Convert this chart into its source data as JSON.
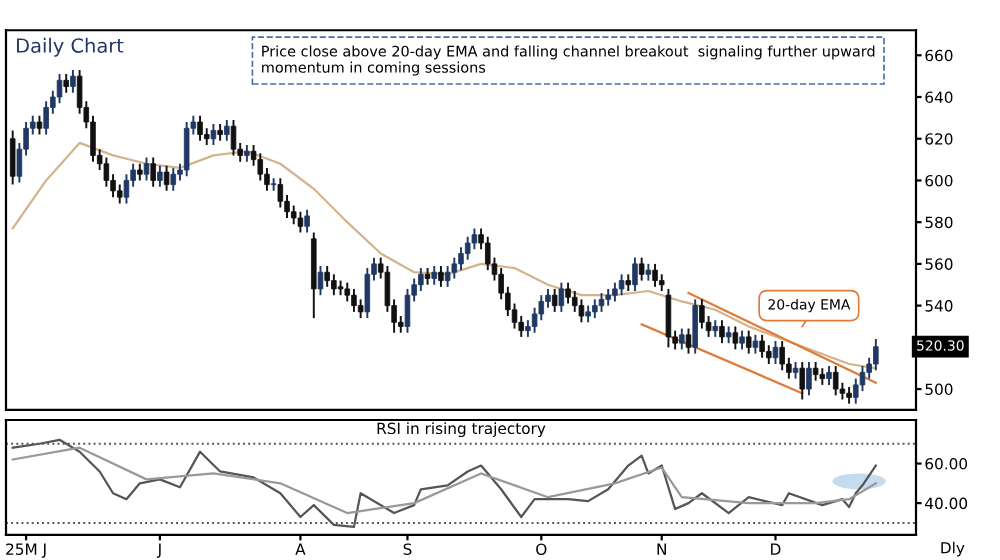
{
  "chart_data": [
    {
      "type": "candlestick",
      "title": "Daily Chart",
      "ylim": [
        490,
        672
      ],
      "yticks": [
        500,
        540,
        560,
        580,
        600,
        620,
        640,
        660
      ],
      "categories": [
        null,
        null,
        null,
        null,
        null,
        null,
        null,
        null,
        null,
        null,
        null,
        null,
        null,
        null,
        null,
        null,
        null,
        null,
        null,
        null,
        null,
        null,
        null,
        null,
        null,
        null,
        null,
        null,
        null,
        null,
        null,
        null,
        null,
        null,
        null,
        null,
        null,
        null,
        null,
        null,
        null,
        null,
        null,
        null,
        null,
        null,
        null,
        null,
        null,
        null,
        null,
        null,
        null,
        null,
        null,
        null,
        null,
        null,
        null,
        null,
        null,
        null,
        null,
        null,
        null,
        null,
        null,
        null,
        null,
        null,
        null,
        null,
        null,
        null,
        null,
        null,
        null,
        null,
        null,
        null,
        null,
        null,
        null,
        null,
        null,
        null,
        null,
        null,
        null,
        null,
        null,
        null,
        null,
        null,
        null,
        null,
        null,
        null,
        null,
        null,
        null,
        null,
        null,
        null,
        null,
        null,
        null,
        null,
        null,
        null,
        null,
        null,
        null,
        null,
        null,
        null,
        null,
        null,
        null,
        null,
        null,
        null,
        null,
        null,
        null,
        null,
        null,
        null,
        null,
        null
      ],
      "ohlc": [
        [
          620,
          624,
          598,
          602
        ],
        [
          602,
          618,
          599,
          615
        ],
        [
          615,
          628,
          612,
          625
        ],
        [
          625,
          631,
          622,
          628
        ],
        [
          628,
          631,
          622,
          625
        ],
        [
          625,
          638,
          622,
          635
        ],
        [
          635,
          643,
          632,
          640
        ],
        [
          640,
          651,
          637,
          648
        ],
        [
          648,
          651,
          642,
          645
        ],
        [
          645,
          653,
          642,
          650
        ],
        [
          650,
          653,
          632,
          635
        ],
        [
          635,
          638,
          625,
          628
        ],
        [
          628,
          631,
          609,
          612
        ],
        [
          612,
          615,
          605,
          608
        ],
        [
          608,
          611,
          597,
          600
        ],
        [
          600,
          603,
          592,
          595
        ],
        [
          595,
          598,
          589,
          592
        ],
        [
          592,
          603,
          589,
          600
        ],
        [
          600,
          608,
          597,
          605
        ],
        [
          605,
          608,
          600,
          603
        ],
        [
          603,
          611,
          600,
          608
        ],
        [
          608,
          611,
          597,
          600
        ],
        [
          600,
          607,
          597,
          604
        ],
        [
          604,
          607,
          595,
          598
        ],
        [
          598,
          606,
          595,
          603
        ],
        [
          603,
          608,
          600,
          605
        ],
        [
          605,
          628,
          602,
          625
        ],
        [
          625,
          631,
          622,
          628
        ],
        [
          628,
          631,
          619,
          622
        ],
        [
          622,
          625,
          617,
          620
        ],
        [
          620,
          627,
          617,
          624
        ],
        [
          624,
          627,
          619,
          622
        ],
        [
          622,
          629,
          619,
          626
        ],
        [
          626,
          629,
          612,
          615
        ],
        [
          615,
          618,
          609,
          612
        ],
        [
          612,
          617,
          609,
          614
        ],
        [
          614,
          617,
          607,
          610
        ],
        [
          610,
          613,
          600,
          603
        ],
        [
          603,
          606,
          595,
          598
        ],
        [
          598,
          601,
          595,
          598
        ],
        [
          598,
          601,
          587,
          590
        ],
        [
          590,
          593,
          582,
          585
        ],
        [
          585,
          588,
          579,
          582
        ],
        [
          582,
          585,
          575,
          578
        ],
        [
          578,
          586,
          575,
          583
        ],
        [
          572,
          575,
          534,
          548
        ],
        [
          548,
          559,
          545,
          556
        ],
        [
          556,
          559,
          549,
          552
        ],
        [
          552,
          555,
          545,
          548
        ],
        [
          549,
          552,
          545,
          548
        ],
        [
          548,
          551,
          542,
          545
        ],
        [
          545,
          548,
          537,
          540
        ],
        [
          540,
          543,
          534,
          537
        ],
        [
          537,
          558,
          534,
          555
        ],
        [
          555,
          563,
          552,
          560
        ],
        [
          560,
          563,
          553,
          556
        ],
        [
          556,
          559,
          537,
          540
        ],
        [
          540,
          543,
          527,
          532
        ],
        [
          532,
          535,
          527,
          530
        ],
        [
          530,
          548,
          527,
          545
        ],
        [
          545,
          553,
          542,
          550
        ],
        [
          550,
          558,
          547,
          555
        ],
        [
          555,
          558,
          550,
          553
        ],
        [
          553,
          559,
          550,
          556
        ],
        [
          556,
          559,
          549,
          552
        ],
        [
          552,
          559,
          549,
          556
        ],
        [
          556,
          563,
          553,
          560
        ],
        [
          560,
          568,
          557,
          565
        ],
        [
          565,
          573,
          562,
          570
        ],
        [
          570,
          577,
          567,
          574
        ],
        [
          574,
          577,
          567,
          570
        ],
        [
          570,
          573,
          557,
          560
        ],
        [
          560,
          563,
          552,
          555
        ],
        [
          555,
          558,
          543,
          546
        ],
        [
          546,
          549,
          535,
          538
        ],
        [
          538,
          541,
          529,
          532
        ],
        [
          532,
          535,
          525,
          528
        ],
        [
          528,
          533,
          525,
          530
        ],
        [
          530,
          539,
          527,
          536
        ],
        [
          536,
          545,
          533,
          542
        ],
        [
          542,
          548,
          539,
          545
        ],
        [
          545,
          548,
          537,
          540
        ],
        [
          540,
          551,
          537,
          548
        ],
        [
          548,
          551,
          541,
          544
        ],
        [
          544,
          547,
          537,
          540
        ],
        [
          540,
          543,
          532,
          535
        ],
        [
          535,
          540,
          532,
          537
        ],
        [
          537,
          543,
          534,
          540
        ],
        [
          540,
          546,
          537,
          543
        ],
        [
          543,
          548,
          540,
          545
        ],
        [
          545,
          551,
          542,
          548
        ],
        [
          548,
          555,
          545,
          552
        ],
        [
          552,
          555,
          547,
          550
        ],
        [
          550,
          563,
          547,
          560
        ],
        [
          560,
          563,
          552,
          555
        ],
        [
          555,
          560,
          552,
          557
        ],
        [
          557,
          560,
          549,
          552
        ],
        [
          552,
          555,
          547,
          550
        ],
        [
          545,
          548,
          520,
          525
        ],
        [
          525,
          528,
          519,
          522
        ],
        [
          522,
          529,
          519,
          526
        ],
        [
          526,
          529,
          517,
          520
        ],
        [
          520,
          543,
          517,
          540
        ],
        [
          540,
          543,
          529,
          532
        ],
        [
          532,
          535,
          525,
          528
        ],
        [
          528,
          533,
          525,
          530
        ],
        [
          530,
          533,
          522,
          525
        ],
        [
          525,
          530,
          522,
          527
        ],
        [
          527,
          530,
          519,
          522
        ],
        [
          522,
          528,
          519,
          525
        ],
        [
          525,
          528,
          517,
          520
        ],
        [
          520,
          526,
          517,
          523
        ],
        [
          523,
          526,
          515,
          518
        ],
        [
          518,
          521,
          512,
          515
        ],
        [
          515,
          523,
          512,
          520
        ],
        [
          520,
          523,
          509,
          512
        ],
        [
          512,
          515,
          505,
          508
        ],
        [
          508,
          513,
          505,
          510
        ],
        [
          510,
          513,
          495,
          500
        ],
        [
          500,
          513,
          497,
          510
        ],
        [
          510,
          513,
          504,
          507
        ],
        [
          507,
          510,
          502,
          505
        ],
        [
          505,
          511,
          502,
          508
        ],
        [
          508,
          511,
          497,
          500
        ],
        [
          500,
          503,
          495,
          498
        ],
        [
          498,
          501,
          493,
          496
        ],
        [
          496,
          505,
          493,
          502
        ],
        [
          502,
          511,
          499,
          508
        ],
        [
          508,
          515,
          505,
          512
        ],
        [
          512,
          524,
          509,
          520.3
        ]
      ],
      "series": [
        {
          "type": "line",
          "color": "#d2b48c",
          "values": [
            577,
            null,
            null,
            null,
            null,
            600,
            null,
            null,
            null,
            null,
            618,
            null,
            null,
            null,
            null,
            612,
            null,
            null,
            null,
            null,
            608,
            null,
            null,
            null,
            null,
            606,
            null,
            null,
            null,
            null,
            612,
            null,
            null,
            null,
            null,
            614,
            null,
            null,
            null,
            null,
            608,
            null,
            null,
            null,
            null,
            596,
            null,
            null,
            null,
            null,
            580,
            null,
            null,
            null,
            null,
            565,
            null,
            null,
            null,
            null,
            556,
            null,
            null,
            null,
            null,
            555,
            null,
            null,
            null,
            null,
            560,
            null,
            null,
            null,
            null,
            558,
            null,
            null,
            null,
            null,
            550,
            null,
            null,
            null,
            null,
            545,
            null,
            null,
            null,
            null,
            545,
            null,
            null,
            null,
            null,
            547,
            null,
            null,
            null,
            null,
            542,
            null,
            null,
            null,
            null,
            538,
            null,
            null,
            null,
            null,
            530,
            null,
            null,
            null,
            null,
            524,
            null,
            null,
            null,
            null,
            518,
            null,
            null,
            null,
            null,
            512,
            null,
            null,
            null,
            510
          ]
        },
        {
          "type": "line",
          "color": "#e07b39",
          "values": [
            null,
            null,
            null,
            null,
            null,
            null,
            null,
            null,
            null,
            null,
            null,
            null,
            null,
            null,
            null,
            null,
            null,
            null,
            null,
            null,
            null,
            null,
            null,
            null,
            null,
            null,
            null,
            null,
            null,
            null,
            null,
            null,
            null,
            null,
            null,
            null,
            null,
            null,
            null,
            null,
            null,
            null,
            null,
            null,
            null,
            null,
            null,
            null,
            null,
            null,
            null,
            null,
            null,
            null,
            null,
            null,
            null,
            null,
            null,
            null,
            null,
            null,
            null,
            null,
            null,
            null,
            null,
            null,
            null,
            null,
            null,
            null,
            null,
            null,
            null,
            null,
            null,
            null,
            null,
            null,
            null,
            null,
            null,
            null,
            null,
            null,
            null,
            null,
            null,
            null,
            null,
            null,
            null,
            null,
            null,
            null,
            null,
            null,
            null,
            null,
            null,
            546,
            null,
            null,
            null,
            null,
            null,
            null,
            null,
            null,
            null,
            null,
            null,
            null,
            null,
            null,
            null,
            null,
            null,
            null,
            null,
            null,
            null,
            null,
            null,
            null,
            null,
            null,
            null,
            503
          ]
        },
        {
          "type": "line",
          "color": "#e07b39",
          "values": [
            null,
            null,
            null,
            null,
            null,
            null,
            null,
            null,
            null,
            null,
            null,
            null,
            null,
            null,
            null,
            null,
            null,
            null,
            null,
            null,
            null,
            null,
            null,
            null,
            null,
            null,
            null,
            null,
            null,
            null,
            null,
            null,
            null,
            null,
            null,
            null,
            null,
            null,
            null,
            null,
            null,
            null,
            null,
            null,
            null,
            null,
            null,
            null,
            null,
            null,
            null,
            null,
            null,
            null,
            null,
            null,
            null,
            null,
            null,
            null,
            null,
            null,
            null,
            null,
            null,
            null,
            null,
            null,
            null,
            null,
            null,
            null,
            null,
            null,
            null,
            null,
            null,
            null,
            null,
            null,
            null,
            null,
            null,
            null,
            null,
            null,
            null,
            null,
            null,
            null,
            null,
            null,
            null,
            null,
            531,
            null,
            null,
            null,
            null,
            null,
            null,
            null,
            null,
            null,
            null,
            null,
            null,
            null,
            null,
            null,
            null,
            null,
            null,
            null,
            null,
            null,
            null,
            null,
            498,
            null,
            null,
            null,
            null,
            null,
            null,
            null,
            null,
            null,
            null,
            null
          ]
        }
      ],
      "annotations": [
        "Price close above 20-day EMA and falling channel breakout  signaling further upward momentum in coming sessions",
        "20-day EMA",
        "520.30"
      ]
    },
    {
      "type": "line",
      "title": "RSI in rising trajectory",
      "xlabel": "Dly",
      "ylim": [
        24,
        82
      ],
      "yticks": [
        {
          "value": 40,
          "label": "40.00"
        },
        {
          "value": 60,
          "label": "60.00"
        }
      ],
      "categories": [
        null,
        null,
        "25M J",
        null,
        null,
        null,
        null,
        null,
        null,
        null,
        null,
        null,
        null,
        null,
        null,
        null,
        null,
        null,
        null,
        null,
        null,
        null,
        "J",
        null,
        null,
        null,
        null,
        null,
        null,
        null,
        null,
        null,
        null,
        null,
        null,
        null,
        null,
        null,
        null,
        null,
        null,
        null,
        null,
        "A",
        null,
        null,
        null,
        null,
        null,
        null,
        null,
        null,
        null,
        null,
        null,
        null,
        null,
        null,
        null,
        "S",
        null,
        null,
        null,
        null,
        null,
        null,
        null,
        null,
        null,
        null,
        null,
        null,
        null,
        null,
        null,
        null,
        null,
        null,
        null,
        "O",
        null,
        null,
        null,
        null,
        null,
        null,
        null,
        null,
        null,
        null,
        null,
        null,
        null,
        null,
        null,
        null,
        null,
        "N",
        null,
        null,
        null,
        null,
        null,
        null,
        null,
        null,
        null,
        null,
        null,
        null,
        null,
        null,
        null,
        null,
        "D",
        null,
        null,
        null,
        null,
        null,
        null,
        null,
        null,
        null,
        null,
        null,
        null,
        null,
        null,
        null
      ],
      "ref_lines": [
        {
          "axis": "y",
          "value": 70,
          "color": "#555555",
          "line_style": "dotted"
        },
        {
          "axis": "y",
          "value": 30,
          "color": "#555555",
          "line_style": "dotted"
        }
      ],
      "series": [
        {
          "color": "#555555",
          "values": [
            68,
            null,
            null,
            null,
            70,
            null,
            null,
            72,
            null,
            null,
            66,
            null,
            null,
            56,
            null,
            45,
            null,
            42,
            null,
            50,
            null,
            null,
            52,
            null,
            null,
            48,
            null,
            null,
            66,
            null,
            null,
            56,
            null,
            null,
            null,
            null,
            53,
            null,
            null,
            null,
            45,
            null,
            null,
            33,
            null,
            39,
            null,
            null,
            29,
            null,
            null,
            28,
            45,
            null,
            null,
            null,
            null,
            35,
            null,
            null,
            39,
            47,
            null,
            null,
            null,
            49,
            null,
            null,
            56,
            null,
            59,
            null,
            null,
            47,
            null,
            null,
            33,
            null,
            42,
            null,
            null,
            null,
            null,
            42,
            null,
            null,
            41,
            null,
            null,
            47,
            null,
            null,
            59,
            null,
            64,
            55,
            null,
            59,
            null,
            37,
            null,
            40,
            null,
            45,
            null,
            null,
            null,
            35,
            null,
            null,
            43,
            null,
            null,
            null,
            null,
            39,
            45,
            null,
            null,
            null,
            null,
            39,
            null,
            null,
            42,
            38,
            45,
            49,
            null,
            59
          ]
        },
        {
          "color": "#999999",
          "values": [
            62,
            null,
            null,
            null,
            null,
            null,
            null,
            null,
            null,
            null,
            68,
            null,
            null,
            null,
            null,
            null,
            null,
            null,
            null,
            null,
            52,
            null,
            null,
            null,
            null,
            null,
            null,
            null,
            null,
            null,
            55,
            null,
            null,
            null,
            null,
            null,
            null,
            null,
            null,
            null,
            50,
            null,
            null,
            null,
            null,
            null,
            null,
            null,
            null,
            null,
            35,
            null,
            null,
            null,
            null,
            null,
            null,
            null,
            null,
            null,
            40,
            null,
            null,
            null,
            null,
            null,
            null,
            null,
            null,
            null,
            55,
            null,
            null,
            null,
            null,
            null,
            null,
            null,
            null,
            null,
            43,
            null,
            null,
            null,
            null,
            null,
            null,
            null,
            null,
            null,
            50,
            null,
            null,
            null,
            null,
            null,
            null,
            58,
            null,
            null,
            43,
            null,
            null,
            null,
            null,
            null,
            null,
            null,
            null,
            null,
            40,
            null,
            null,
            null,
            null,
            null,
            null,
            null,
            null,
            null,
            40,
            null,
            null,
            null,
            null,
            42,
            null,
            null,
            null,
            50
          ]
        }
      ]
    }
  ]
}
